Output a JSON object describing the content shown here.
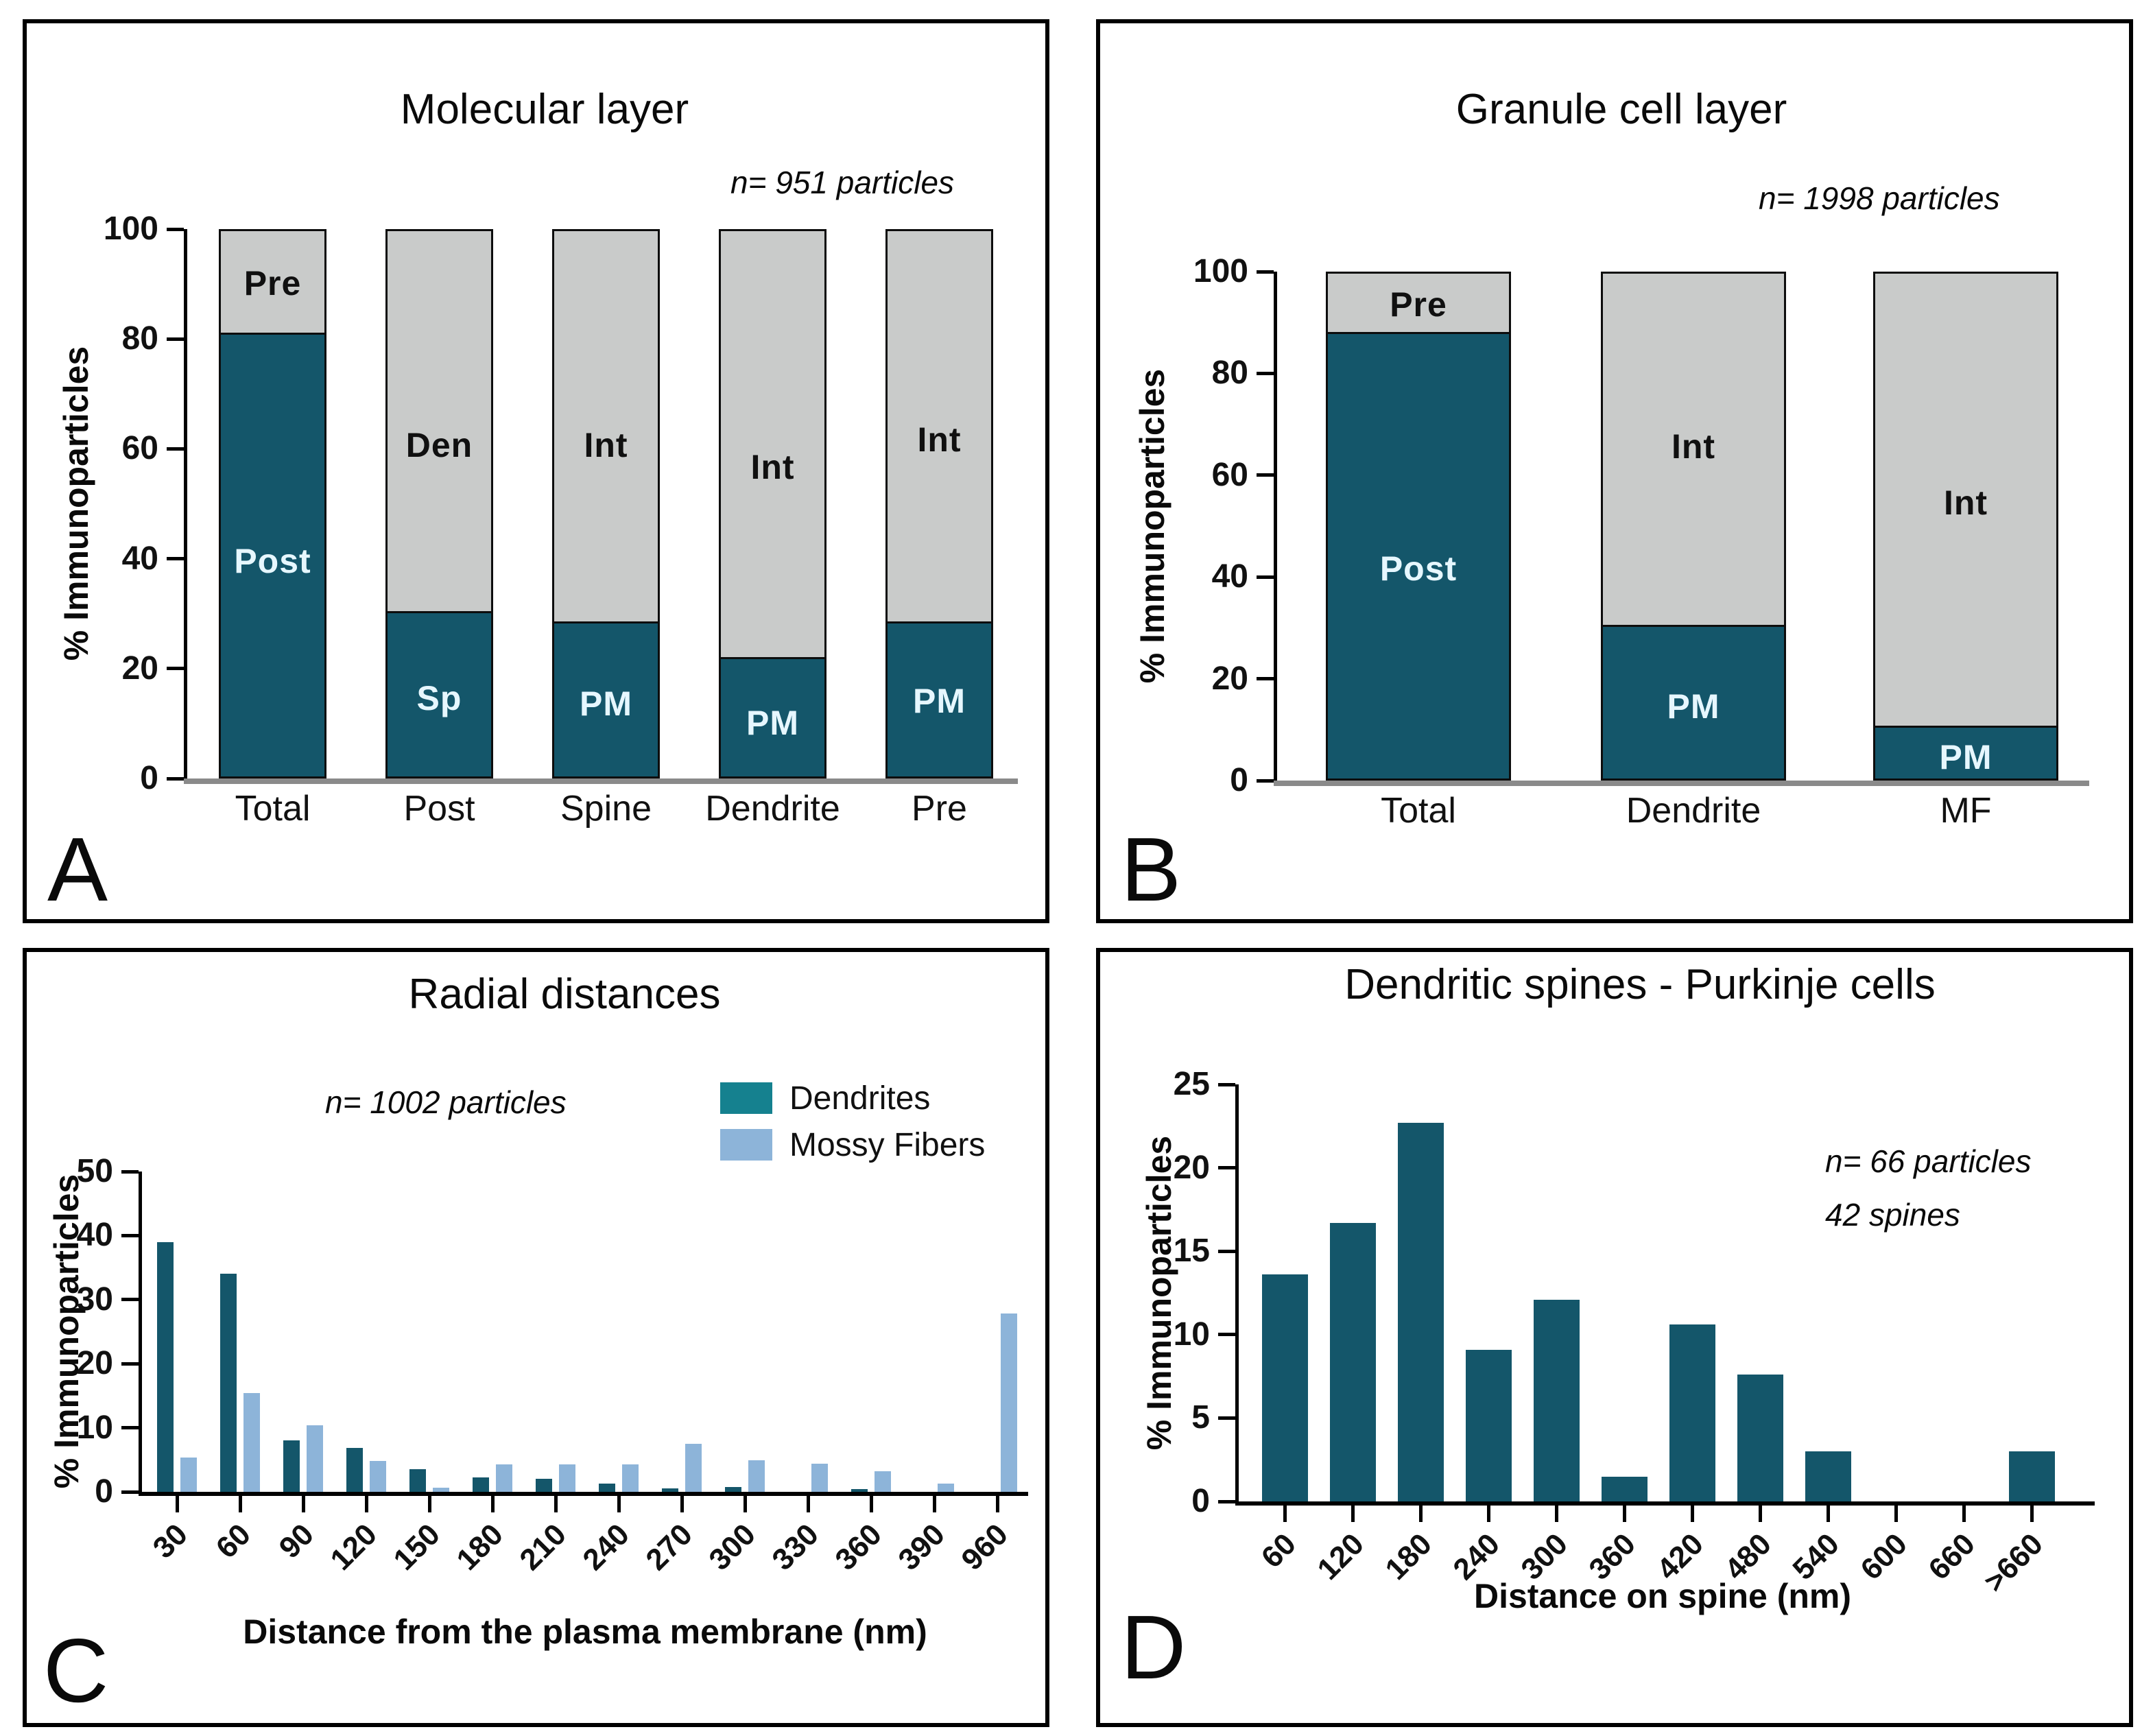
{
  "colors": {
    "teal_dark": "#14566a",
    "teal_legend": "#15818f",
    "light_blue": "#8db4d9",
    "gray_segment": "#c9cbca",
    "baseline_gray": "#8a8a8a",
    "axis_black": "#000000",
    "label_light": "#e6f7ff",
    "label_dark": "#101010"
  },
  "chart_data": [
    {
      "panel_letter": "A",
      "type": "bar",
      "variant": "stacked",
      "title": "Molecular layer",
      "note": "n= 951 particles",
      "ylabel": "% Immunoparticles",
      "ylim": [
        0,
        100
      ],
      "yticks": [
        0,
        20,
        40,
        60,
        80,
        100
      ],
      "categories": [
        "Total",
        "Post",
        "Spine",
        "Dendrite",
        "Pre"
      ],
      "bars": [
        {
          "category": "Total",
          "segments": [
            {
              "label": "Post",
              "value": 81,
              "color": "teal_dark",
              "label_at": 40
            },
            {
              "label": "Pre",
              "value": 19,
              "color": "gray_segment",
              "label_at": 90.5
            }
          ]
        },
        {
          "category": "Post",
          "segments": [
            {
              "label": "Sp",
              "value": 30,
              "color": "teal_dark",
              "label_at": 15
            },
            {
              "label": "Den",
              "value": 70,
              "color": "gray_segment",
              "label_at": 61
            }
          ]
        },
        {
          "category": "Spine",
          "segments": [
            {
              "label": "PM",
              "value": 28,
              "color": "teal_dark",
              "label_at": 14
            },
            {
              "label": "Int",
              "value": 72,
              "color": "gray_segment",
              "label_at": 61
            }
          ]
        },
        {
          "category": "Dendrite",
          "segments": [
            {
              "label": "PM",
              "value": 21.5,
              "color": "teal_dark",
              "label_at": 10.5
            },
            {
              "label": "Int",
              "value": 78.5,
              "color": "gray_segment",
              "label_at": 57
            }
          ]
        },
        {
          "category": "Pre",
          "segments": [
            {
              "label": "PM",
              "value": 28,
              "color": "teal_dark",
              "label_at": 14.5
            },
            {
              "label": "Int",
              "value": 72,
              "color": "gray_segment",
              "label_at": 62
            }
          ]
        }
      ]
    },
    {
      "panel_letter": "B",
      "type": "bar",
      "variant": "stacked",
      "title": "Granule cell layer",
      "note": "n= 1998 particles",
      "ylabel": "% Immunoparticles",
      "ylim": [
        0,
        100
      ],
      "yticks": [
        0,
        20,
        40,
        60,
        80,
        100
      ],
      "categories": [
        "Total",
        "Dendrite",
        "MF"
      ],
      "bars": [
        {
          "category": "Total",
          "segments": [
            {
              "label": "Post",
              "value": 88,
              "color": "teal_dark",
              "label_at": 42
            },
            {
              "label": "Pre",
              "value": 12,
              "color": "gray_segment",
              "label_at": 94
            }
          ]
        },
        {
          "category": "Dendrite",
          "segments": [
            {
              "label": "PM",
              "value": 30,
              "color": "teal_dark",
              "label_at": 15
            },
            {
              "label": "Int",
              "value": 70,
              "color": "gray_segment",
              "label_at": 66
            }
          ]
        },
        {
          "category": "MF",
          "segments": [
            {
              "label": "PM",
              "value": 10,
              "color": "teal_dark",
              "label_at": 5
            },
            {
              "label": "Int",
              "value": 90,
              "color": "gray_segment",
              "label_at": 55
            }
          ]
        }
      ]
    },
    {
      "panel_letter": "C",
      "type": "bar",
      "variant": "grouped",
      "title": "Radial distances",
      "note": "n= 1002 particles",
      "ylabel": "% Immunoparticles",
      "xlabel": "Distance from the plasma membrane (nm)",
      "ylim": [
        0,
        50
      ],
      "yticks": [
        0,
        10,
        20,
        30,
        40,
        50
      ],
      "legend_position": "top-right",
      "categories": [
        "30",
        "60",
        "90",
        "120",
        "150",
        "180",
        "210",
        "240",
        "270",
        "300",
        "330",
        "360",
        "390",
        "960"
      ],
      "series": [
        {
          "name": "Dendrites",
          "color": "teal_dark",
          "legend_color": "teal_legend",
          "values": [
            39,
            34,
            8,
            6.8,
            3.5,
            2.2,
            2.0,
            1.3,
            0.5,
            0.8,
            0,
            0.4,
            0,
            0
          ]
        },
        {
          "name": "Mossy Fibers",
          "color": "light_blue",
          "legend_color": "light_blue",
          "values": [
            5.3,
            15.4,
            10.4,
            4.8,
            0.6,
            4.3,
            4.3,
            4.3,
            7.5,
            4.9,
            4.4,
            3.2,
            1.3,
            27.8
          ]
        }
      ]
    },
    {
      "panel_letter": "D",
      "type": "bar",
      "variant": "simple",
      "title": "Dendritic spines - Purkinje cells",
      "notes": [
        "n= 66 particles",
        "42 spines"
      ],
      "ylabel": "% Immunoparticles",
      "xlabel": "Distance on spine (nm)",
      "ylim": [
        0,
        25
      ],
      "yticks": [
        0,
        5,
        10,
        15,
        20,
        25
      ],
      "categories": [
        "60",
        "120",
        "180",
        "240",
        "300",
        "360",
        "420",
        "480",
        "540",
        "600",
        "660",
        ">660"
      ],
      "values": [
        13.6,
        16.7,
        22.7,
        9.1,
        12.1,
        1.5,
        10.6,
        7.6,
        3,
        0,
        0,
        3
      ],
      "series_color": "teal_dark"
    }
  ]
}
